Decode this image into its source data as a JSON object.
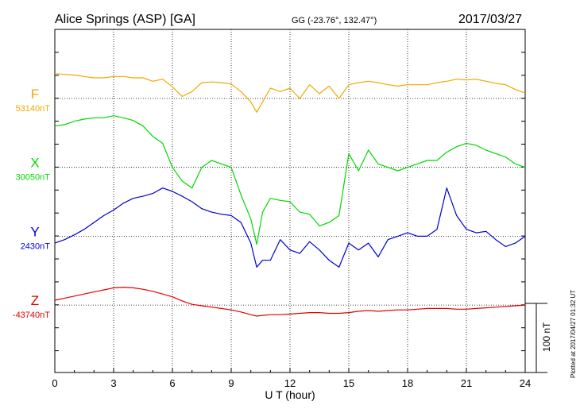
{
  "header": {
    "station": "Alice Springs (ASP)  [GA]",
    "coords": "GG (-23.76°, 132.47°)",
    "date": "2017/03/27"
  },
  "plotted_note": "Plotted at 2017/04/27 01:32 UT",
  "scale_bar_label": "100 nT",
  "chart_data": {
    "type": "line",
    "xlabel": "U T (hour)",
    "xlim": [
      0,
      24
    ],
    "xticks": [
      0,
      3,
      6,
      9,
      12,
      15,
      18,
      21,
      24
    ],
    "grid": true,
    "scale_nT_per_division": 100,
    "series": [
      {
        "name": "F",
        "baseline_label": "53140nT",
        "baseline": 53140,
        "color": "#f0a800",
        "x": [
          0,
          0.5,
          1,
          1.5,
          2,
          2.5,
          3,
          3.5,
          4,
          4.5,
          5,
          5.5,
          6,
          6.5,
          7,
          7.5,
          8,
          8.5,
          9,
          9.5,
          10,
          10.3,
          10.6,
          11,
          11.5,
          12,
          12.5,
          13,
          13.5,
          14,
          14.5,
          15,
          15.5,
          16,
          16.5,
          17,
          17.5,
          18,
          18.5,
          19,
          19.5,
          20,
          20.5,
          21,
          21.5,
          22,
          22.5,
          23,
          23.5,
          24
        ],
        "y": [
          53176,
          53175,
          53174,
          53172,
          53170,
          53170,
          53172,
          53172,
          53170,
          53170,
          53165,
          53168,
          53157,
          53143,
          53150,
          53163,
          53164,
          53163,
          53161,
          53150,
          53135,
          53120,
          53135,
          53155,
          53150,
          53155,
          53140,
          53160,
          53147,
          53158,
          53140,
          53160,
          53163,
          53165,
          53163,
          53160,
          53158,
          53160,
          53160,
          53160,
          53163,
          53165,
          53168,
          53167,
          53168,
          53165,
          53162,
          53160,
          53153,
          53148
        ]
      },
      {
        "name": "X",
        "baseline_label": "30050nT",
        "baseline": 30050,
        "color": "#00d800",
        "x": [
          0,
          0.5,
          1,
          1.5,
          2,
          2.5,
          3,
          3.5,
          4,
          4.5,
          5,
          5.5,
          6,
          6.5,
          7,
          7.5,
          8,
          8.5,
          9,
          9.5,
          10,
          10.3,
          10.6,
          11,
          11.5,
          12,
          12.5,
          13,
          13.5,
          14,
          14.5,
          15,
          15.5,
          16,
          16.5,
          17,
          17.5,
          18,
          18.5,
          19,
          19.5,
          20,
          20.5,
          21,
          21.5,
          22,
          22.5,
          23,
          23.5,
          24
        ],
        "y": [
          30110,
          30112,
          30117,
          30120,
          30122,
          30122,
          30125,
          30122,
          30118,
          30110,
          30095,
          30085,
          30050,
          30030,
          30020,
          30050,
          30060,
          30055,
          30050,
          30010,
          29975,
          29938,
          29985,
          30005,
          30002,
          30000,
          29985,
          29982,
          29965,
          29970,
          29980,
          30070,
          30045,
          30075,
          30055,
          30050,
          30045,
          30050,
          30055,
          30060,
          30060,
          30072,
          30080,
          30085,
          30082,
          30075,
          30070,
          30065,
          30055,
          30050
        ]
      },
      {
        "name": "Y",
        "baseline_label": "2430nT",
        "baseline": 2430,
        "color": "#0000d0",
        "x": [
          0,
          0.5,
          1,
          1.5,
          2,
          2.5,
          3,
          3.5,
          4,
          4.5,
          5,
          5.5,
          6,
          6.5,
          7,
          7.5,
          8,
          8.5,
          9,
          9.5,
          10,
          10.3,
          10.6,
          11,
          11.5,
          12,
          12.5,
          13,
          13.5,
          14,
          14.5,
          15,
          15.5,
          16,
          16.5,
          17,
          17.5,
          18,
          18.5,
          19,
          19.5,
          20,
          20.5,
          21,
          21.5,
          22,
          22.5,
          23,
          23.5,
          24
        ],
        "y": [
          2420,
          2425,
          2432,
          2440,
          2450,
          2460,
          2468,
          2478,
          2485,
          2488,
          2492,
          2500,
          2495,
          2488,
          2480,
          2470,
          2465,
          2462,
          2460,
          2450,
          2420,
          2385,
          2395,
          2395,
          2425,
          2410,
          2405,
          2422,
          2410,
          2395,
          2385,
          2420,
          2410,
          2420,
          2400,
          2425,
          2430,
          2435,
          2430,
          2430,
          2440,
          2500,
          2460,
          2440,
          2435,
          2437,
          2425,
          2415,
          2420,
          2430
        ]
      },
      {
        "name": "Z",
        "baseline_label": "-43740nT",
        "baseline": -43740,
        "color": "#e00000",
        "x": [
          0,
          0.5,
          1,
          1.5,
          2,
          2.5,
          3,
          3.5,
          4,
          4.5,
          5,
          5.5,
          6,
          6.5,
          7,
          7.5,
          8,
          8.5,
          9,
          9.5,
          10,
          10.3,
          10.6,
          11,
          11.5,
          12,
          12.5,
          13,
          13.5,
          14,
          14.5,
          15,
          15.5,
          16,
          16.5,
          17,
          17.5,
          18,
          18.5,
          19,
          19.5,
          20,
          20.5,
          21,
          21.5,
          22,
          22.5,
          23,
          23.5,
          24
        ],
        "y": [
          -43733,
          -43730,
          -43727,
          -43724,
          -43721,
          -43718,
          -43715,
          -43714,
          -43715,
          -43717,
          -43720,
          -43724,
          -43728,
          -43734,
          -43739,
          -43741,
          -43743,
          -43745,
          -43747,
          -43750,
          -43754,
          -43756,
          -43755,
          -43754,
          -43754,
          -43753,
          -43752,
          -43751,
          -43751,
          -43752,
          -43752,
          -43751,
          -43749,
          -43748,
          -43749,
          -43748,
          -43747,
          -43747,
          -43746,
          -43745,
          -43745,
          -43745,
          -43746,
          -43746,
          -43745,
          -43744,
          -43743,
          -43742,
          -43741,
          -43740
        ]
      }
    ]
  }
}
